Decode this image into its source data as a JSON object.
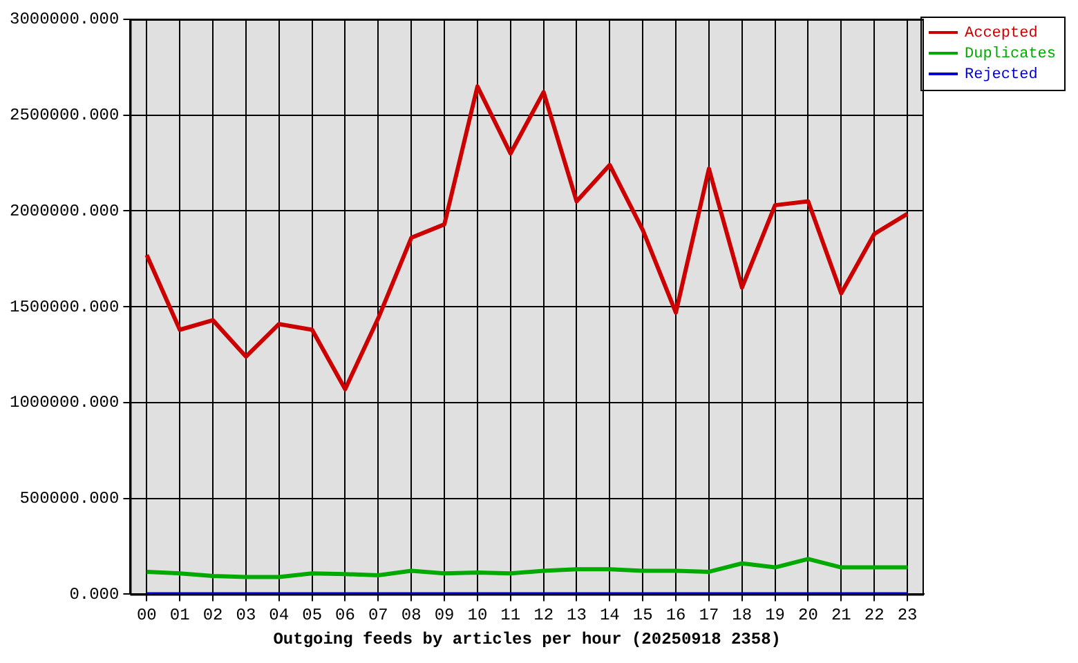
{
  "chart_data": {
    "type": "line",
    "xlabel": "Outgoing feeds by articles per hour (20250918 2358)",
    "categories": [
      "00",
      "01",
      "02",
      "03",
      "04",
      "05",
      "06",
      "07",
      "08",
      "09",
      "10",
      "11",
      "12",
      "13",
      "14",
      "15",
      "16",
      "17",
      "18",
      "19",
      "20",
      "21",
      "22",
      "23"
    ],
    "series": [
      {
        "name": "Accepted",
        "color": "#cc0000",
        "values": [
          1770000,
          1380000,
          1430000,
          1240000,
          1410000,
          1380000,
          1070000,
          1440000,
          1860000,
          1930000,
          2650000,
          2300000,
          2620000,
          2050000,
          2240000,
          1900000,
          1470000,
          2220000,
          1600000,
          2030000,
          2050000,
          1570000,
          1880000,
          1985000
        ]
      },
      {
        "name": "Duplicates",
        "color": "#00aa00",
        "values": [
          117000,
          109000,
          95000,
          90000,
          90000,
          109000,
          105000,
          99000,
          122000,
          109000,
          113000,
          109000,
          122000,
          130000,
          130000,
          122000,
          122000,
          117000,
          161000,
          140000,
          184000,
          140000,
          140000,
          140000
        ]
      },
      {
        "name": "Rejected",
        "color": "#0000cc",
        "values": [
          0,
          0,
          0,
          0,
          0,
          0,
          0,
          0,
          0,
          0,
          0,
          0,
          0,
          0,
          0,
          0,
          0,
          0,
          0,
          0,
          0,
          0,
          0,
          0
        ]
      }
    ],
    "ylim": [
      0,
      3000000
    ],
    "yticks": [
      {
        "value": 0,
        "label": "0.000"
      },
      {
        "value": 500000,
        "label": "500000.000"
      },
      {
        "value": 1000000,
        "label": "1000000.000"
      },
      {
        "value": 1500000,
        "label": "1500000.000"
      },
      {
        "value": 2000000,
        "label": "2000000.000"
      },
      {
        "value": 2500000,
        "label": "2500000.000"
      },
      {
        "value": 3000000,
        "label": "3000000.000"
      }
    ],
    "grid": true,
    "legend": "top right",
    "line_style": "solid"
  }
}
